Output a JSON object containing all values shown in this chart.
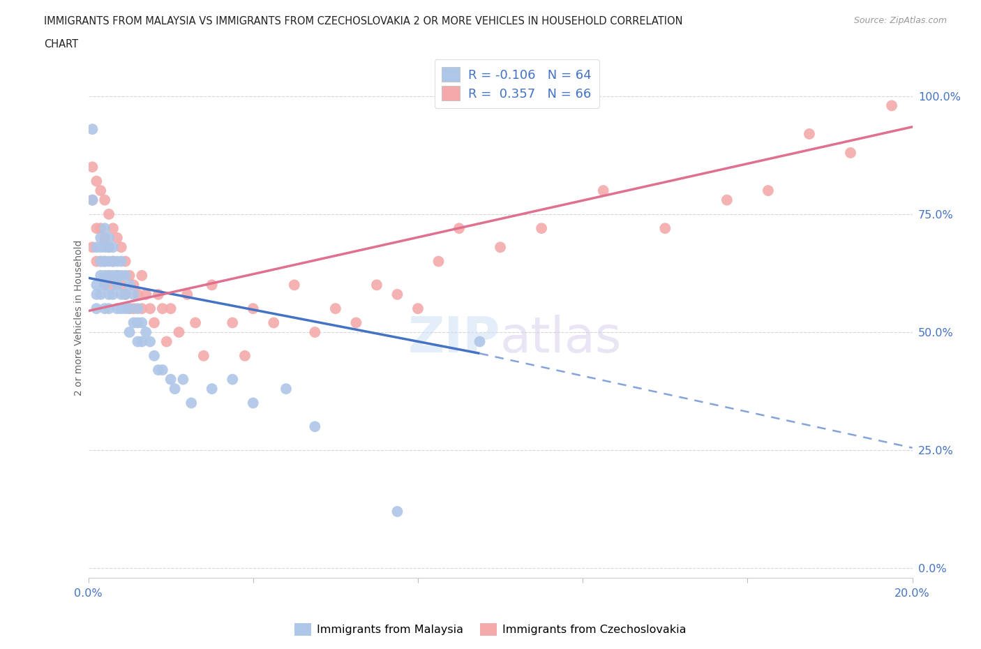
{
  "title_line1": "IMMIGRANTS FROM MALAYSIA VS IMMIGRANTS FROM CZECHOSLOVAKIA 2 OR MORE VEHICLES IN HOUSEHOLD CORRELATION",
  "title_line2": "CHART",
  "source": "Source: ZipAtlas.com",
  "ylabel": "2 or more Vehicles in Household",
  "ytick_labels": [
    "0.0%",
    "25.0%",
    "50.0%",
    "75.0%",
    "100.0%"
  ],
  "ytick_values": [
    0.0,
    0.25,
    0.5,
    0.75,
    1.0
  ],
  "xlim": [
    0.0,
    0.2
  ],
  "ylim": [
    -0.02,
    1.08
  ],
  "legend_blue_label": "R = -0.106   N = 64",
  "legend_pink_label": "R =  0.357   N = 66",
  "blue_color": "#aec6e8",
  "pink_color": "#f4aaaa",
  "blue_line_color": "#4472c4",
  "pink_line_color": "#e07090",
  "blue_line_x0": 0.0,
  "blue_line_y0": 0.615,
  "blue_line_x1": 0.095,
  "blue_line_y1": 0.455,
  "blue_line_xend": 0.2,
  "blue_line_yend": 0.255,
  "pink_line_x0": 0.0,
  "pink_line_y0": 0.545,
  "pink_line_x1": 0.2,
  "pink_line_y1": 0.935,
  "blue_scatter_x": [
    0.001,
    0.001,
    0.002,
    0.002,
    0.002,
    0.002,
    0.003,
    0.003,
    0.003,
    0.003,
    0.003,
    0.004,
    0.004,
    0.004,
    0.004,
    0.004,
    0.004,
    0.005,
    0.005,
    0.005,
    0.005,
    0.005,
    0.005,
    0.006,
    0.006,
    0.006,
    0.006,
    0.007,
    0.007,
    0.007,
    0.007,
    0.008,
    0.008,
    0.008,
    0.008,
    0.009,
    0.009,
    0.009,
    0.01,
    0.01,
    0.01,
    0.011,
    0.011,
    0.012,
    0.012,
    0.012,
    0.013,
    0.013,
    0.014,
    0.015,
    0.016,
    0.017,
    0.018,
    0.02,
    0.021,
    0.023,
    0.025,
    0.03,
    0.035,
    0.04,
    0.048,
    0.055,
    0.075,
    0.095
  ],
  "blue_scatter_y": [
    0.93,
    0.78,
    0.68,
    0.6,
    0.58,
    0.55,
    0.7,
    0.68,
    0.65,
    0.62,
    0.58,
    0.72,
    0.68,
    0.65,
    0.62,
    0.6,
    0.55,
    0.7,
    0.68,
    0.65,
    0.62,
    0.58,
    0.55,
    0.68,
    0.65,
    0.62,
    0.58,
    0.65,
    0.62,
    0.6,
    0.55,
    0.65,
    0.62,
    0.58,
    0.55,
    0.62,
    0.58,
    0.55,
    0.6,
    0.55,
    0.5,
    0.58,
    0.52,
    0.55,
    0.52,
    0.48,
    0.52,
    0.48,
    0.5,
    0.48,
    0.45,
    0.42,
    0.42,
    0.4,
    0.38,
    0.4,
    0.35,
    0.38,
    0.4,
    0.35,
    0.38,
    0.3,
    0.12,
    0.48
  ],
  "pink_scatter_x": [
    0.001,
    0.001,
    0.001,
    0.002,
    0.002,
    0.002,
    0.003,
    0.003,
    0.003,
    0.004,
    0.004,
    0.004,
    0.004,
    0.005,
    0.005,
    0.005,
    0.006,
    0.006,
    0.006,
    0.007,
    0.007,
    0.008,
    0.008,
    0.009,
    0.009,
    0.01,
    0.01,
    0.011,
    0.011,
    0.012,
    0.013,
    0.013,
    0.014,
    0.015,
    0.016,
    0.017,
    0.018,
    0.019,
    0.02,
    0.022,
    0.024,
    0.026,
    0.028,
    0.03,
    0.035,
    0.038,
    0.04,
    0.045,
    0.05,
    0.055,
    0.06,
    0.065,
    0.07,
    0.075,
    0.08,
    0.085,
    0.09,
    0.1,
    0.11,
    0.125,
    0.14,
    0.155,
    0.165,
    0.175,
    0.185,
    0.195
  ],
  "pink_scatter_y": [
    0.85,
    0.78,
    0.68,
    0.82,
    0.72,
    0.65,
    0.8,
    0.72,
    0.65,
    0.78,
    0.7,
    0.65,
    0.6,
    0.75,
    0.68,
    0.62,
    0.72,
    0.65,
    0.6,
    0.7,
    0.62,
    0.68,
    0.6,
    0.65,
    0.58,
    0.62,
    0.55,
    0.6,
    0.55,
    0.58,
    0.62,
    0.55,
    0.58,
    0.55,
    0.52,
    0.58,
    0.55,
    0.48,
    0.55,
    0.5,
    0.58,
    0.52,
    0.45,
    0.6,
    0.52,
    0.45,
    0.55,
    0.52,
    0.6,
    0.5,
    0.55,
    0.52,
    0.6,
    0.58,
    0.55,
    0.65,
    0.72,
    0.68,
    0.72,
    0.8,
    0.72,
    0.78,
    0.8,
    0.92,
    0.88,
    0.98
  ]
}
